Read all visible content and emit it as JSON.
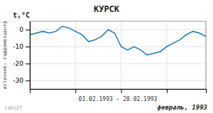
{
  "chart_data": {
    "type": "line",
    "title": "КУРСК",
    "ylabel": "t,°C",
    "xlabel": "01.02.1993  -  28.02.1993",
    "annotations": [
      "источник: гидрометцентр",
      "февраль, 1993",
      "lab127"
    ],
    "x": [
      1,
      2,
      3,
      4,
      5,
      6,
      7,
      8,
      9,
      10,
      11,
      12,
      13,
      14,
      15,
      16,
      17,
      18,
      19,
      20,
      21,
      22,
      23,
      24,
      25,
      26,
      27,
      28
    ],
    "values": [
      -3,
      -2,
      -1,
      -2,
      -1,
      2,
      1,
      -1,
      -3,
      -7,
      -6,
      -4,
      0,
      -2,
      -10,
      -12,
      -10,
      -12,
      -15,
      -14,
      -13,
      -10,
      -8,
      -6,
      -3,
      -1,
      -2,
      -4
    ],
    "xlim": [
      1,
      28
    ],
    "xticks": [
      1,
      8,
      15,
      22,
      28
    ],
    "ylim": [
      -35,
      5
    ],
    "yticks": [
      0,
      -10,
      -20,
      -30
    ],
    "grid": true,
    "tick_labels": "y"
  }
}
